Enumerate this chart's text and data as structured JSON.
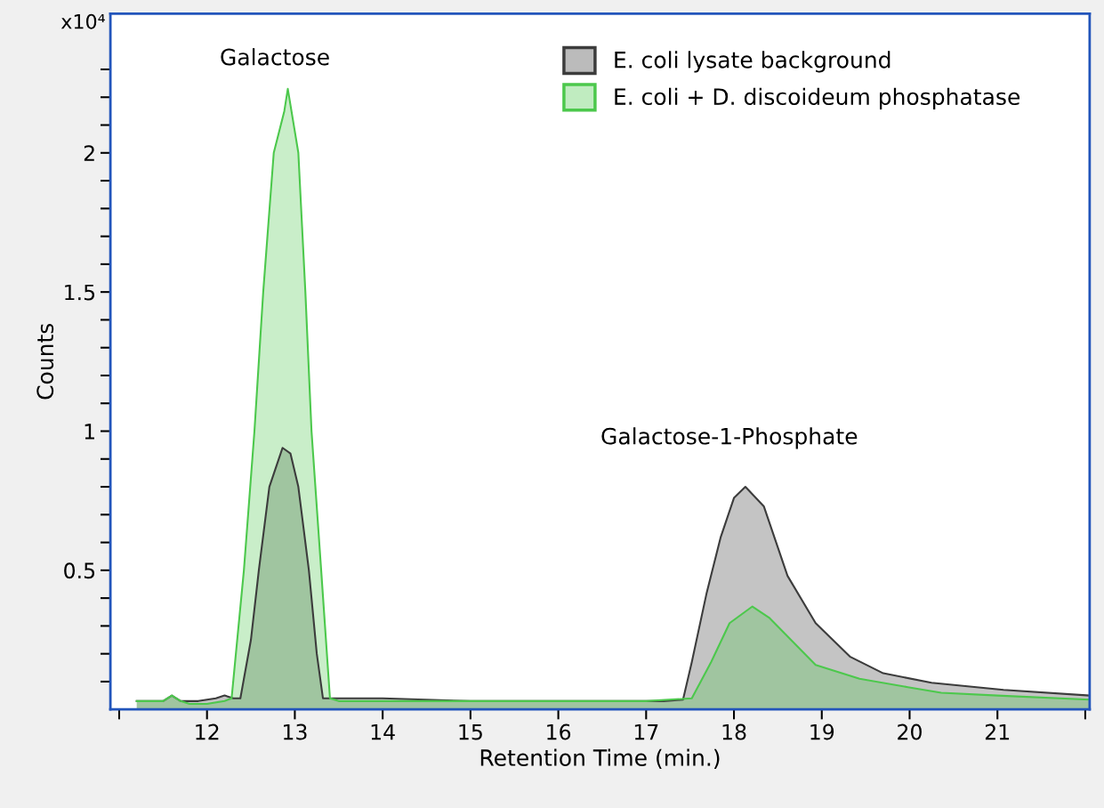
{
  "chart_data": {
    "type": "area",
    "xlabel": "Retention Time (min.)",
    "ylabel": "Counts",
    "annotations": [
      "x10⁴",
      "Galactose",
      "Galactose-1-Phosphate"
    ],
    "xlim": [
      10.9,
      22.05
    ],
    "ylim": [
      0,
      2.5
    ],
    "xticks": [
      {
        "value": 11,
        "label": null
      },
      12,
      13,
      14,
      15,
      16,
      17,
      18,
      19,
      20,
      21,
      {
        "value": 22,
        "label": null
      }
    ],
    "yticks": [
      {
        "value": 0.1,
        "label": null
      },
      {
        "value": 0.2,
        "label": null
      },
      {
        "value": 0.3,
        "label": null
      },
      {
        "value": 0.4,
        "label": null
      },
      0.5,
      {
        "value": 0.6,
        "label": null
      },
      {
        "value": 0.7,
        "label": null
      },
      {
        "value": 0.8,
        "label": null
      },
      {
        "value": 0.9,
        "label": null
      },
      1,
      {
        "value": 1.1,
        "label": null
      },
      {
        "value": 1.2,
        "label": null
      },
      {
        "value": 1.3,
        "label": null
      },
      {
        "value": 1.4,
        "label": null
      },
      1.5,
      {
        "value": 1.6,
        "label": null
      },
      {
        "value": 1.7,
        "label": null
      },
      {
        "value": 1.8,
        "label": null
      },
      {
        "value": 1.9,
        "label": null
      },
      2,
      {
        "value": 2.1,
        "label": null
      },
      {
        "value": 2.2,
        "label": null
      },
      {
        "value": 2.3,
        "label": null
      }
    ],
    "grid": false,
    "legend": "top right",
    "series": [
      {
        "name": "E. coli lysate background",
        "color": "#3c3c3c",
        "x": [
          11.2,
          11.5,
          11.6,
          11.7,
          11.9,
          12.1,
          12.2,
          12.3,
          12.38,
          12.5,
          12.59,
          12.71,
          12.86,
          12.95,
          13.04,
          13.16,
          13.25,
          13.32,
          13.5,
          14,
          15,
          15.6,
          16,
          17,
          17.2,
          17.42,
          17.52,
          17.69,
          17.85,
          18.0,
          18.13,
          18.34,
          18.61,
          18.93,
          19.32,
          19.7,
          20.25,
          21.07,
          22.05
        ],
        "values": [
          0.03,
          0.03,
          0.05,
          0.03,
          0.03,
          0.04,
          0.05,
          0.04,
          0.04,
          0.25,
          0.5,
          0.8,
          0.94,
          0.92,
          0.8,
          0.5,
          0.2,
          0.04,
          0.04,
          0.04,
          0.03,
          0.03,
          0.03,
          0.03,
          0.03,
          0.035,
          0.17,
          0.42,
          0.62,
          0.76,
          0.8,
          0.73,
          0.48,
          0.31,
          0.19,
          0.13,
          0.096,
          0.07,
          0.05
        ]
      },
      {
        "name": "E. coli + D. discoideum phosphatase",
        "color": "#4cc84c",
        "x": [
          11.2,
          11.5,
          11.6,
          11.7,
          11.8,
          12.0,
          12.2,
          12.28,
          12.42,
          12.54,
          12.64,
          12.76,
          12.88,
          12.92,
          13.04,
          13.12,
          13.19,
          13.3,
          13.4,
          13.5,
          14,
          15,
          16,
          17,
          17.52,
          17.74,
          17.95,
          18.21,
          18.4,
          18.93,
          19.43,
          19.98,
          20.36,
          21,
          22.05
        ],
        "values": [
          0.03,
          0.03,
          0.05,
          0.03,
          0.02,
          0.02,
          0.03,
          0.04,
          0.5,
          1.0,
          1.5,
          2.0,
          2.15,
          2.23,
          2.0,
          1.5,
          1.0,
          0.5,
          0.04,
          0.03,
          0.03,
          0.03,
          0.03,
          0.03,
          0.04,
          0.17,
          0.31,
          0.37,
          0.33,
          0.16,
          0.11,
          0.08,
          0.06,
          0.05,
          0.035
        ]
      }
    ]
  }
}
